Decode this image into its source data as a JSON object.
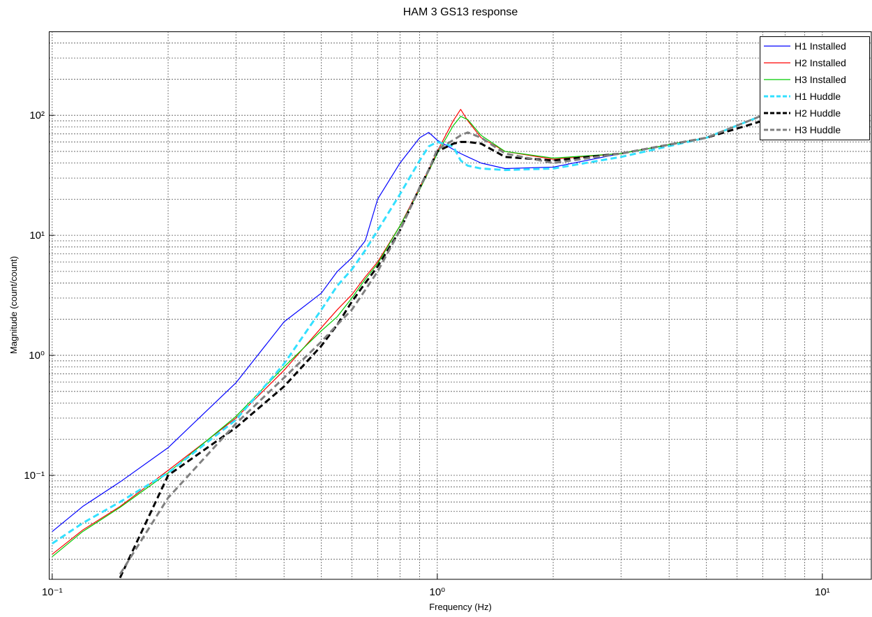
{
  "chart_data": {
    "type": "line",
    "title": "HAM 3 GS13 response",
    "x_label": "Frequency (Hz)",
    "y_label": "Magnitude (count/count)",
    "xscale": "log",
    "yscale": "log",
    "grid": true,
    "legend": "top-right",
    "xlim": [
      0.098,
      13.4
    ],
    "ylim": [
      0.0136,
      500
    ],
    "xticks": [
      {
        "value": 0.1,
        "label": "10⁻¹"
      },
      {
        "value": 1,
        "label": "10⁰"
      },
      {
        "value": 10,
        "label": "10¹"
      }
    ],
    "yticks": [
      {
        "value": 0.1,
        "label": "10⁻¹"
      },
      {
        "value": 1,
        "label": "10⁰"
      },
      {
        "value": 10,
        "label": "10¹"
      },
      {
        "value": 100,
        "label": "10²"
      }
    ],
    "xminorticks": [
      0.2,
      0.3,
      0.4,
      0.5,
      0.6,
      0.7,
      0.8,
      0.9,
      2,
      3,
      4,
      5,
      6,
      7,
      8,
      9
    ],
    "yminorticks": [
      0.02,
      0.03,
      0.04,
      0.05,
      0.06,
      0.07,
      0.08,
      0.09,
      0.2,
      0.3,
      0.4,
      0.5,
      0.6,
      0.7,
      0.8,
      0.9,
      2,
      3,
      4,
      5,
      6,
      7,
      8,
      9,
      20,
      30,
      40,
      50,
      60,
      70,
      80,
      90,
      200,
      300,
      400
    ],
    "x": [
      0.1,
      0.12,
      0.15,
      0.2,
      0.3,
      0.4,
      0.5,
      0.55,
      0.6,
      0.65,
      0.7,
      0.8,
      0.9,
      0.95,
      1.0,
      1.1,
      1.15,
      1.2,
      1.3,
      1.5,
      2,
      3,
      5,
      7,
      10,
      13
    ],
    "series": [
      {
        "name": "H1 Installed",
        "color": "#0000ff",
        "dashed": false,
        "width": 1.2,
        "values": [
          0.034,
          0.055,
          0.088,
          0.17,
          0.59,
          1.9,
          3.3,
          5.0,
          6.5,
          9,
          20,
          40,
          65,
          72,
          62,
          52,
          48,
          45,
          40,
          36,
          37,
          48,
          65,
          100,
          150,
          200
        ]
      },
      {
        "name": "H2 Installed",
        "color": "#ff0000",
        "dashed": false,
        "width": 1.2,
        "values": [
          0.022,
          0.035,
          0.055,
          0.11,
          0.3,
          0.75,
          1.7,
          2.4,
          3.2,
          4.5,
          6,
          12,
          25,
          35,
          50,
          90,
          112,
          90,
          65,
          50,
          43,
          48,
          65,
          100,
          150,
          200
        ]
      },
      {
        "name": "H3 Installed",
        "color": "#00cc00",
        "dashed": false,
        "width": 1.2,
        "values": [
          0.021,
          0.034,
          0.054,
          0.105,
          0.31,
          0.8,
          1.6,
          2.1,
          3.0,
          4.3,
          5.8,
          12,
          24,
          34,
          48,
          82,
          98,
          92,
          68,
          50,
          44,
          48,
          65,
          100,
          150,
          210
        ]
      },
      {
        "name": "H1 Huddle",
        "color": "#33e0ff",
        "dashed": true,
        "width": 3,
        "values": [
          0.027,
          0.04,
          0.06,
          0.105,
          0.29,
          0.85,
          2.4,
          3.8,
          5.2,
          7.5,
          11,
          22,
          42,
          55,
          60,
          55,
          42,
          38,
          36,
          35,
          36,
          45,
          65,
          100,
          150,
          200
        ]
      },
      {
        "name": "H2 Huddle",
        "color": "#000000",
        "dashed": true,
        "width": 3,
        "values": [
          null,
          null,
          0.014,
          0.1,
          0.25,
          0.55,
          1.2,
          1.8,
          2.8,
          4,
          5.5,
          11,
          25,
          35,
          50,
          58,
          60,
          60,
          58,
          45,
          42,
          48,
          65,
          90,
          150,
          200
        ]
      },
      {
        "name": "H3 Huddle",
        "color": "#808080",
        "dashed": true,
        "width": 3,
        "values": [
          null,
          null,
          0.015,
          0.065,
          0.27,
          0.65,
          1.3,
          1.8,
          2.4,
          3.5,
          5,
          11,
          25,
          35,
          52,
          62,
          68,
          72,
          65,
          48,
          40,
          48,
          65,
          100,
          150,
          200
        ]
      }
    ]
  }
}
